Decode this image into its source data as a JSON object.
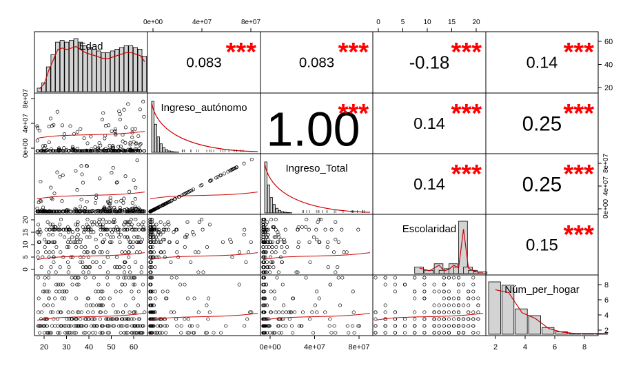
{
  "chart_data": {
    "type": "scatter-matrix",
    "variables": [
      "Edad",
      "Ingreso_autónomo",
      "Ingreso_Total",
      "Escolaridad",
      "Núm_per_hogar"
    ],
    "significance_stars": "***",
    "correlations": [
      {
        "row": 0,
        "col": 1,
        "label": "0.083",
        "value": 0.083
      },
      {
        "row": 0,
        "col": 2,
        "label": "0.083",
        "value": 0.083
      },
      {
        "row": 0,
        "col": 3,
        "label": "-0.18",
        "value": -0.18
      },
      {
        "row": 0,
        "col": 4,
        "label": "0.14",
        "value": 0.14
      },
      {
        "row": 1,
        "col": 2,
        "label": "1.00",
        "value": 1.0
      },
      {
        "row": 1,
        "col": 3,
        "label": "0.14",
        "value": 0.14
      },
      {
        "row": 1,
        "col": 4,
        "label": "0.25",
        "value": 0.25
      },
      {
        "row": 2,
        "col": 3,
        "label": "0.14",
        "value": 0.14
      },
      {
        "row": 2,
        "col": 4,
        "label": "0.25",
        "value": 0.25
      },
      {
        "row": 3,
        "col": 4,
        "label": "0.15",
        "value": 0.15
      }
    ],
    "axis_ticks": {
      "top": [
        {
          "col": 1,
          "labels": [
            "0e+00",
            "4e+07",
            "8e+07"
          ]
        },
        {
          "col": 3,
          "labels": [
            "0",
            "5",
            "10",
            "15",
            "20"
          ]
        }
      ],
      "bottom": [
        {
          "col": 0,
          "labels": [
            "20",
            "30",
            "40",
            "50",
            "60"
          ]
        },
        {
          "col": 2,
          "labels": [
            "0e+00",
            "4e+07",
            "8e+07"
          ]
        },
        {
          "col": 4,
          "labels": [
            "2",
            "4",
            "6",
            "8"
          ]
        }
      ],
      "left": [
        {
          "row": 1,
          "labels": [
            "0e+00",
            "4e+07",
            "8e+07"
          ]
        },
        {
          "row": 3,
          "labels": [
            "0",
            "5",
            "10",
            "15",
            "20"
          ]
        }
      ],
      "right": [
        {
          "row": 0,
          "labels": [
            "20",
            "40",
            "60"
          ]
        },
        {
          "row": 2,
          "labels": [
            "0e+00",
            "4e+07",
            "8e+07"
          ]
        },
        {
          "row": 4,
          "labels": [
            "2",
            "4",
            "6",
            "8"
          ]
        }
      ]
    },
    "ranges": {
      "Edad": [
        18,
        65
      ],
      "Ingreso_autónomo": [
        0,
        90000000
      ],
      "Ingreso_Total": [
        0,
        90000000
      ],
      "Escolaridad": [
        0,
        22
      ],
      "Núm_per_hogar": [
        1,
        9
      ]
    },
    "histograms": {
      "Edad": {
        "bins": [
          18,
          20,
          22,
          24,
          26,
          28,
          30,
          32,
          34,
          36,
          38,
          40,
          42,
          44,
          46,
          48,
          50,
          52,
          54,
          56,
          58,
          60,
          62,
          64
        ],
        "counts": [
          4,
          10,
          28,
          42,
          56,
          58,
          56,
          58,
          60,
          56,
          52,
          50,
          48,
          46,
          44,
          44,
          46,
          48,
          50,
          52,
          52,
          50,
          48,
          40
        ]
      },
      "Escolaridad": {
        "bins": [
          8,
          10,
          12,
          13,
          14,
          15,
          16,
          17,
          18,
          19,
          20,
          21
        ],
        "counts": [
          4,
          2,
          6,
          2,
          3,
          6,
          4,
          32,
          4,
          2,
          1,
          1
        ]
      },
      "Núm_per_hogar": {
        "bins": [
          1,
          2,
          3,
          4,
          5,
          6,
          7,
          8,
          9
        ],
        "counts": [
          62,
          58,
          30,
          22,
          8,
          3,
          1,
          1,
          1
        ]
      }
    },
    "colors": {
      "stars": "#ff0000",
      "smooth": "#cc0000",
      "hist_fill": "#d3d3d3",
      "points": "#000000"
    }
  }
}
